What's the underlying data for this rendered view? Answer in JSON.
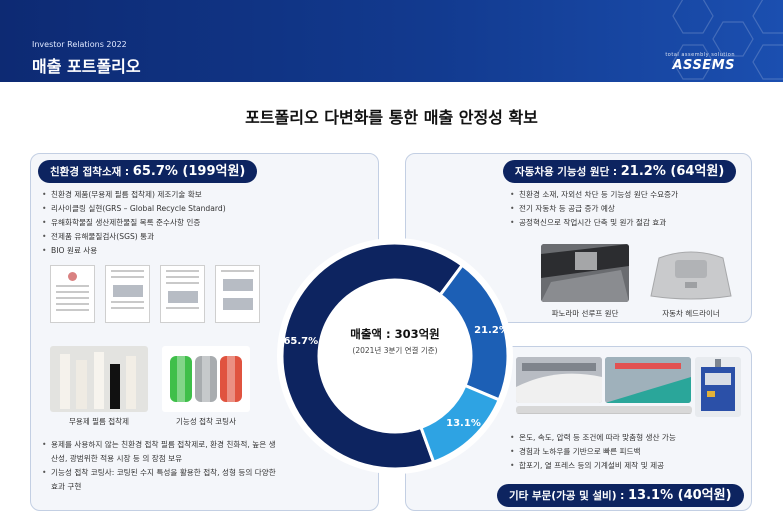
{
  "header": {
    "subtitle": "Investor Relations 2022",
    "title": "매출 포트폴리오",
    "logo_tagline": "total assembly solution",
    "logo_text": "ASSEMS"
  },
  "headline": "포트폴리오 다변화를 통한 매출 안정성 확보",
  "eco": {
    "label": "친환경 접착소재 : ",
    "value": "65.7% (199억원)",
    "bullets": [
      "친환경 제품(무용제 필름 접착제) 제조기술 확보",
      "리사이클링 실현(GRS – Global Recycle Standard)",
      "유해화학물질 생산제한물질 목록 준수사항 인증",
      "전제품 유해물질검사(SGS) 통과",
      "BIO 원료 사용"
    ],
    "photo1_caption": "무용제 필름 접착제",
    "photo2_caption": "기능성 접착 코팅사",
    "bottom_bullets": [
      "용제를 사용하지 않는 친환경 접착 필름 접착제로, 환경 친화적, 높은 생산성, 광범위한 적용 시장 등 의 장점 보유",
      "기능성 접착 코팅사: 코팅된 수지 특성을 활용한 접착, 성형 등의 다양한 효과 구현"
    ]
  },
  "auto": {
    "label": "자동차용 기능성 원단 : ",
    "value": "21.2% (64억원)",
    "bullets": [
      "친환경 소재, 자외선 차단 등 기능성 원단 수요증가",
      "전기 자동차 등 공급 증가 예상",
      "공정혁신으로 작업시간 단축 및 원가 절감 효과"
    ],
    "photo1_caption": "파노라마 선루프 원단",
    "photo2_caption": "자동차 헤드라이너"
  },
  "other": {
    "label": "기타 부문(가공 및 설비) : ",
    "value": "13.1% (40억원)",
    "bullets": [
      "온도, 속도, 압력 등 조건에 따라 맞춤형 생산 가능",
      "경험과 노하우를 기반으로 빠른 피드백",
      "합포기, 열 프레스 등의 기계설비 제작 및 제공"
    ]
  },
  "donut": {
    "center_main": "매출액 : 303억원",
    "center_sub": "(2021년 3분기 연결 기준)",
    "segments": [
      {
        "name": "친환경 접착소재",
        "pct": 65.7,
        "label": "65.7%",
        "color": "#0d2460"
      },
      {
        "name": "자동차용 기능성 원단",
        "pct": 21.2,
        "label": "21.2%",
        "color": "#1c5fb5"
      },
      {
        "name": "기타 부문(가공 및 설비)",
        "pct": 13.1,
        "label": "13.1%",
        "color": "#2ea3e3"
      }
    ]
  }
}
